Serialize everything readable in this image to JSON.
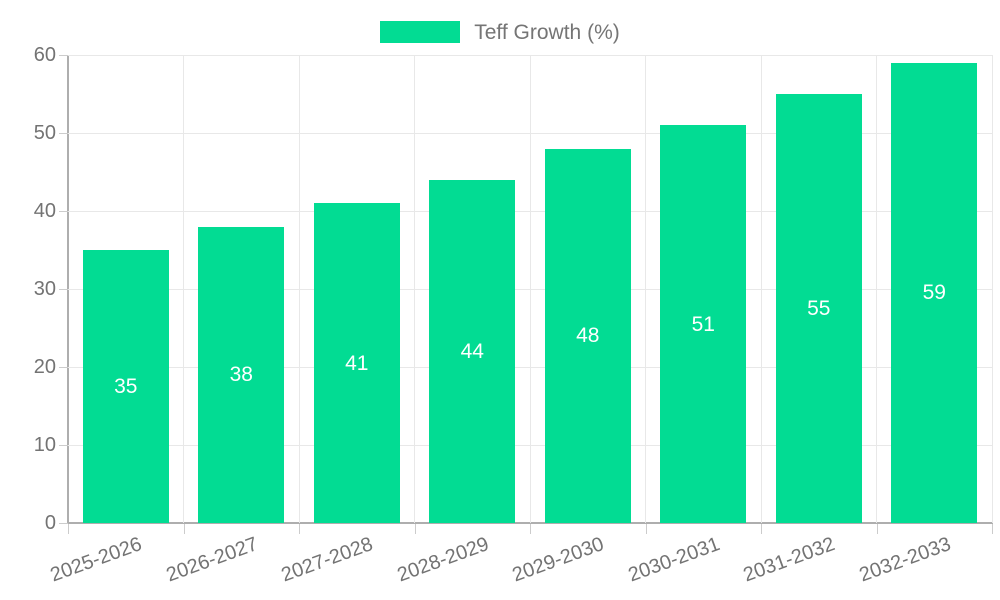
{
  "chart_data": {
    "type": "bar",
    "title": "Teff Growth (%)",
    "legend": {
      "label": "Teff Growth (%)",
      "position": "top"
    },
    "categories": [
      "2025-2026",
      "2026-2027",
      "2027-2028",
      "2028-2029",
      "2029-2030",
      "2030-2031",
      "2031-2032",
      "2032-2033"
    ],
    "series": [
      {
        "name": "Teff Growth (%)",
        "values": [
          35,
          38,
          41,
          44,
          48,
          51,
          55,
          59
        ]
      }
    ],
    "xlabel": "",
    "ylabel": "",
    "ylim": [
      0,
      60
    ],
    "yticks": [
      0,
      10,
      20,
      30,
      40,
      50,
      60
    ],
    "grid": true,
    "legend_position": "top",
    "colors": {
      "bar": "#02DC93",
      "value_label": "#ffffff",
      "axis_line": "#aeaeae",
      "gridline": "#e8e8e8",
      "tick_mark": "#cccccc",
      "tick_label": "#737373",
      "legend_text": "#757575"
    }
  }
}
